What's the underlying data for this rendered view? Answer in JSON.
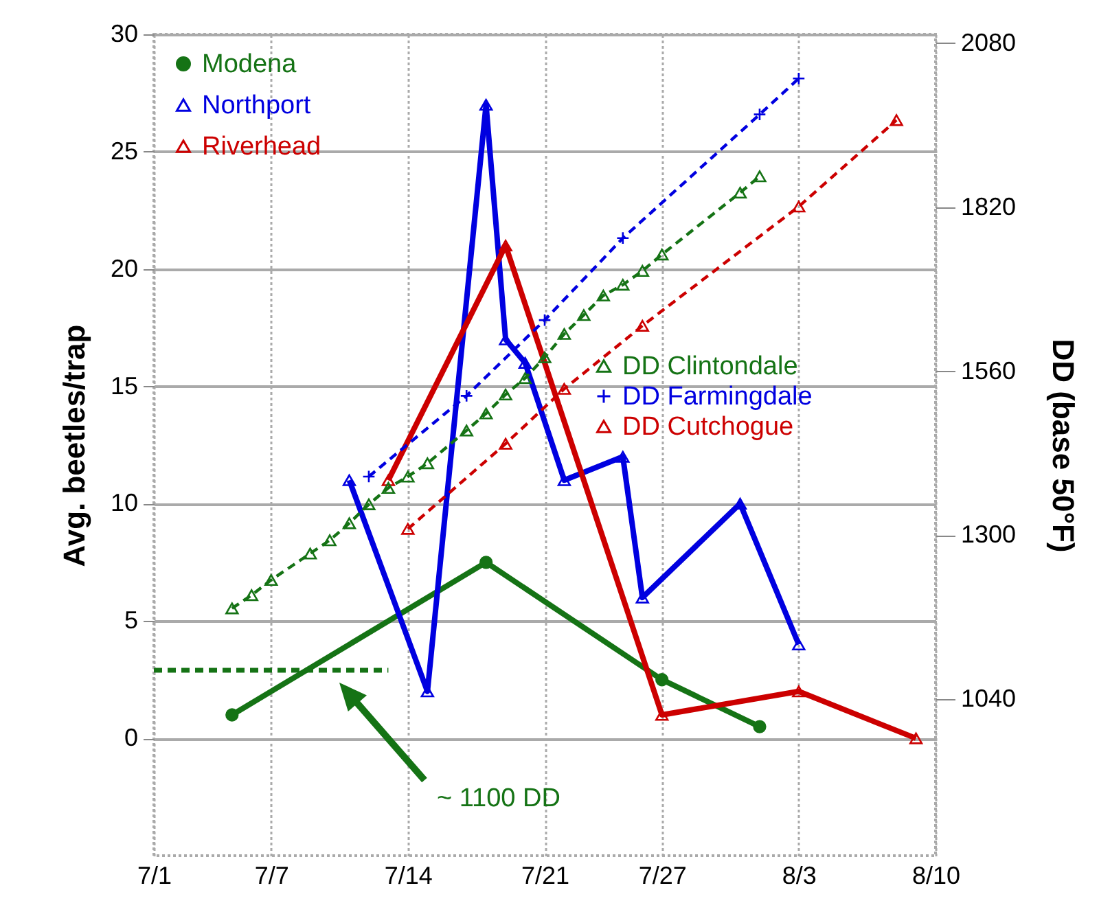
{
  "chart_data": {
    "type": "line",
    "ylabel": "Avg. beetles/trap",
    "y2label": "DD (base 50°F)",
    "xlim": [
      "--07-01",
      "--08-10"
    ],
    "xticks": [
      {
        "value": "--07-01",
        "label": "7/1"
      },
      {
        "value": "--07-07",
        "label": "7/7"
      },
      {
        "value": "--07-14",
        "label": "7/14"
      },
      {
        "value": "--07-21",
        "label": "7/21"
      },
      {
        "value": "--07-27",
        "label": "7/27"
      },
      {
        "value": "--08-03",
        "label": "8/3"
      },
      {
        "value": "--08-10",
        "label": "8/10"
      }
    ],
    "ylim": [
      -5,
      30
    ],
    "yticks": [
      0,
      5,
      10,
      15,
      20,
      25,
      30
    ],
    "y2lim": [
      792,
      2094
    ],
    "y2ticks": [
      1040,
      1300,
      1560,
      1820,
      2080
    ],
    "grid": true,
    "legend": "top left",
    "annotations": [
      "~ 1100 DD"
    ],
    "series": [
      {
        "name": "Modena",
        "color": "#157315",
        "marker": "circle",
        "line_style": "solid",
        "x": [
          "--07-05",
          "--07-18",
          "--07-27",
          "--08-01"
        ],
        "values": [
          1,
          7.5,
          2.5,
          0.5
        ]
      },
      {
        "name": "Northport",
        "color": "#0000e0",
        "marker": "triangle",
        "line_style": "solid",
        "x": [
          "--07-11",
          "--07-15",
          "--07-18",
          "--07-19",
          "--07-20",
          "--07-22",
          "--07-25",
          "--07-26",
          "--07-31",
          "--08-03"
        ],
        "values": [
          11,
          2,
          27,
          17,
          16,
          11,
          12,
          6,
          10,
          4
        ]
      },
      {
        "name": "Riverhead",
        "color": "#cc0000",
        "marker": "triangle",
        "line_style": "solid",
        "x": [
          "--07-13",
          "--07-19",
          "--07-27",
          "--08-03",
          "--08-09"
        ],
        "values": [
          11,
          21,
          1,
          2,
          0
        ]
      },
      {
        "name": "DD Clintondale",
        "color": "#157315",
        "marker": "triangle",
        "line_style": "dashed",
        "axis": "y2",
        "x": [
          "--07-05",
          "--07-06",
          "--07-07",
          "--07-09",
          "--07-10",
          "--07-11",
          "--07-12",
          "--07-13",
          "--07-14",
          "--07-15",
          "--07-17",
          "--07-18",
          "--07-19",
          "--07-20",
          "--07-21",
          "--07-22",
          "--07-23",
          "--07-24",
          "--07-25",
          "--07-26",
          "--07-27",
          "--07-31",
          "--08-01"
        ],
        "values": [
          1184,
          1205,
          1229,
          1271,
          1292,
          1319,
          1349,
          1375,
          1393,
          1414,
          1466,
          1493,
          1523,
          1549,
          1582,
          1619,
          1649,
          1680,
          1697,
          1719,
          1745,
          1843,
          1869
        ]
      },
      {
        "name": "DD Farmingdale",
        "color": "#0000e0",
        "marker": "cross",
        "line_style": "dashed",
        "axis": "y2",
        "x": [
          "--07-12",
          "--07-17",
          "--07-21",
          "--07-25",
          "--08-01",
          "--08-03"
        ],
        "values": [
          1393,
          1521,
          1641,
          1771,
          1967,
          2024
        ]
      },
      {
        "name": "DD Cutchogue",
        "color": "#cc0000",
        "marker": "triangle",
        "line_style": "dashed",
        "axis": "y2",
        "x": [
          "--07-14",
          "--07-19",
          "--07-22",
          "--07-26",
          "--08-03",
          "--08-08"
        ],
        "values": [
          1310,
          1445,
          1532,
          1632,
          1821,
          1958
        ]
      },
      {
        "color": "#157315",
        "line_style": "dashed",
        "x": [
          "--07-01",
          "--07-13"
        ],
        "values": [
          2.9,
          2.9
        ]
      }
    ]
  }
}
